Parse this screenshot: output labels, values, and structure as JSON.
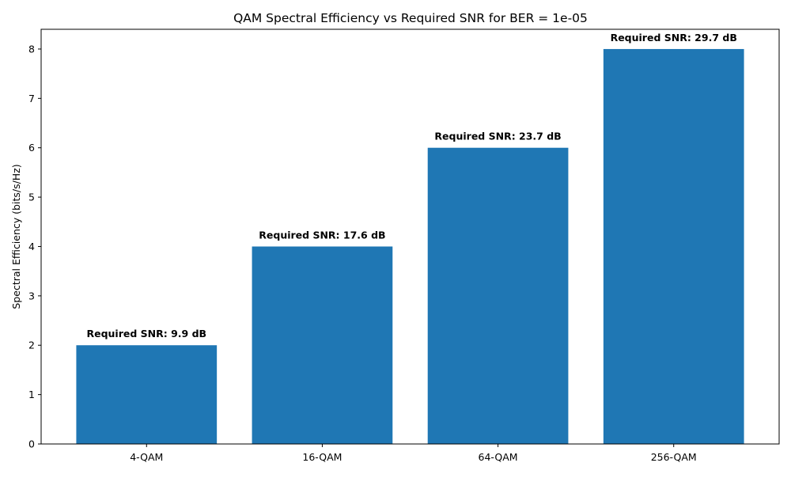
{
  "chart_data": {
    "type": "bar",
    "title": "QAM Spectral Efficiency vs Required SNR for BER = 1e-05",
    "xlabel": "",
    "ylabel": "Spectral Efficiency (bits/s/Hz)",
    "categories": [
      "4-QAM",
      "16-QAM",
      "64-QAM",
      "256-QAM"
    ],
    "values": [
      2,
      4,
      6,
      8
    ],
    "data_labels": [
      "Required SNR: 9.9 dB",
      "Required SNR: 17.6 dB",
      "Required SNR: 23.7 dB",
      "Required SNR: 29.7 dB"
    ],
    "ylim": [
      0,
      8.4
    ],
    "yticks": [
      0,
      1,
      2,
      3,
      4,
      5,
      6,
      7,
      8
    ],
    "grid": false,
    "legend": "none",
    "bar_color": "#1f77b4"
  }
}
